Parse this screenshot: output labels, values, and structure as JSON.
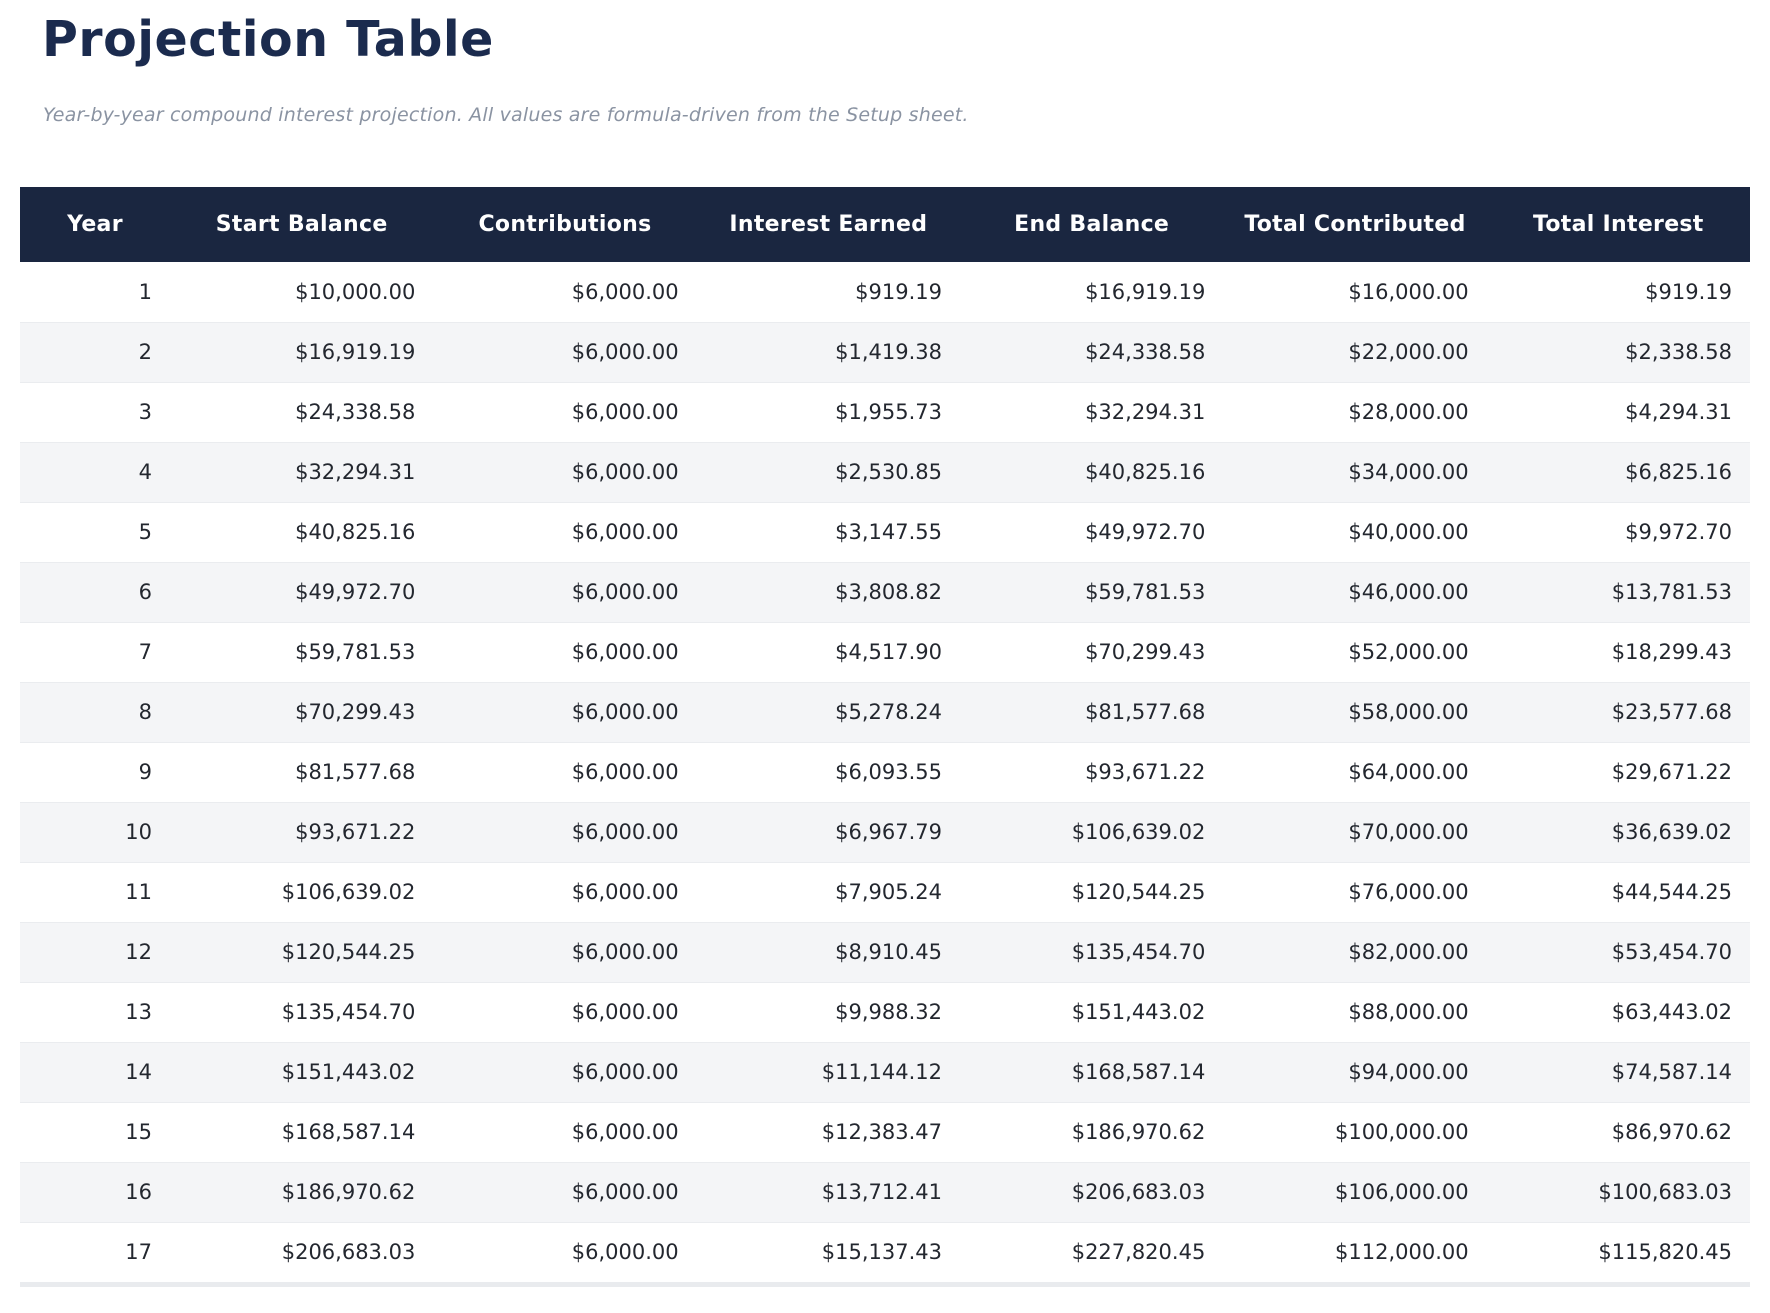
{
  "page": {
    "title": "Projection Table",
    "subtitle": "Year-by-year compound interest projection. All values are formula-driven from the Setup sheet."
  },
  "table": {
    "columns": [
      "Year",
      "Start Balance",
      "Contributions",
      "Interest Earned",
      "End Balance",
      "Total Contributed",
      "Total Interest"
    ],
    "rows": [
      [
        "1",
        "$10,000.00",
        "$6,000.00",
        "$919.19",
        "$16,919.19",
        "$16,000.00",
        "$919.19"
      ],
      [
        "2",
        "$16,919.19",
        "$6,000.00",
        "$1,419.38",
        "$24,338.58",
        "$22,000.00",
        "$2,338.58"
      ],
      [
        "3",
        "$24,338.58",
        "$6,000.00",
        "$1,955.73",
        "$32,294.31",
        "$28,000.00",
        "$4,294.31"
      ],
      [
        "4",
        "$32,294.31",
        "$6,000.00",
        "$2,530.85",
        "$40,825.16",
        "$34,000.00",
        "$6,825.16"
      ],
      [
        "5",
        "$40,825.16",
        "$6,000.00",
        "$3,147.55",
        "$49,972.70",
        "$40,000.00",
        "$9,972.70"
      ],
      [
        "6",
        "$49,972.70",
        "$6,000.00",
        "$3,808.82",
        "$59,781.53",
        "$46,000.00",
        "$13,781.53"
      ],
      [
        "7",
        "$59,781.53",
        "$6,000.00",
        "$4,517.90",
        "$70,299.43",
        "$52,000.00",
        "$18,299.43"
      ],
      [
        "8",
        "$70,299.43",
        "$6,000.00",
        "$5,278.24",
        "$81,577.68",
        "$58,000.00",
        "$23,577.68"
      ],
      [
        "9",
        "$81,577.68",
        "$6,000.00",
        "$6,093.55",
        "$93,671.22",
        "$64,000.00",
        "$29,671.22"
      ],
      [
        "10",
        "$93,671.22",
        "$6,000.00",
        "$6,967.79",
        "$106,639.02",
        "$70,000.00",
        "$36,639.02"
      ],
      [
        "11",
        "$106,639.02",
        "$6,000.00",
        "$7,905.24",
        "$120,544.25",
        "$76,000.00",
        "$44,544.25"
      ],
      [
        "12",
        "$120,544.25",
        "$6,000.00",
        "$8,910.45",
        "$135,454.70",
        "$82,000.00",
        "$53,454.70"
      ],
      [
        "13",
        "$135,454.70",
        "$6,000.00",
        "$9,988.32",
        "$151,443.02",
        "$88,000.00",
        "$63,443.02"
      ],
      [
        "14",
        "$151,443.02",
        "$6,000.00",
        "$11,144.12",
        "$168,587.14",
        "$94,000.00",
        "$74,587.14"
      ],
      [
        "15",
        "$168,587.14",
        "$6,000.00",
        "$12,383.47",
        "$186,970.62",
        "$100,000.00",
        "$86,970.62"
      ],
      [
        "16",
        "$186,970.62",
        "$6,000.00",
        "$13,712.41",
        "$206,683.03",
        "$106,000.00",
        "$100,683.03"
      ],
      [
        "17",
        "$206,683.03",
        "$6,000.00",
        "$15,137.43",
        "$227,820.45",
        "$112,000.00",
        "$115,820.45"
      ]
    ]
  },
  "colors": {
    "title": "#1b2b4e",
    "subtitle": "#8a93a2",
    "header_bg": "#1a2640",
    "header_text": "#ffffff",
    "row_alt": "#f4f5f7",
    "cell_text": "#23272f"
  }
}
